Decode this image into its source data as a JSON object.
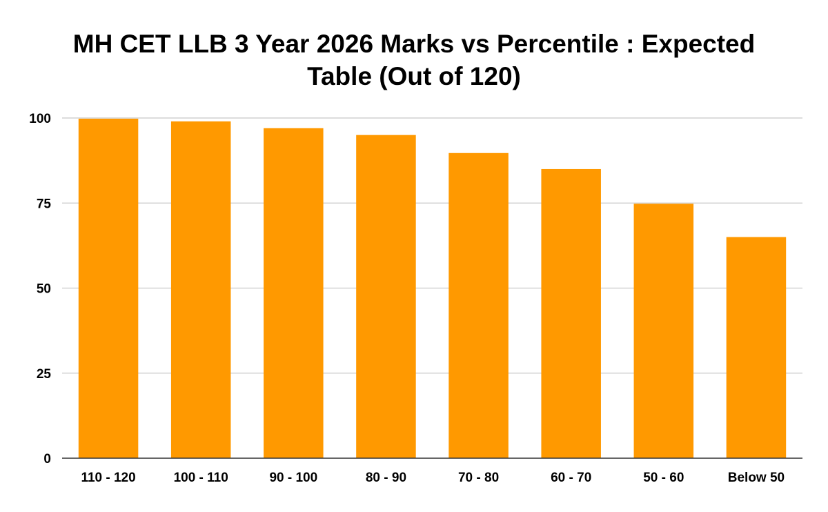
{
  "chart_data": {
    "type": "bar",
    "title_lines": [
      "MH CET LLB 3 Year 2026 Marks vs Percentile : Expected",
      "Table (Out of 120)"
    ],
    "xlabel": "",
    "ylabel": "",
    "categories": [
      "110 - 120",
      "100 - 110",
      "90 - 100",
      "80 - 90",
      "70 - 80",
      "60 - 70",
      "50 - 60",
      "Below 50"
    ],
    "series": [
      {
        "values": [
          99.8,
          99,
          97,
          95,
          89.7,
          85,
          74.8,
          65
        ],
        "color": "#ff9900"
      }
    ],
    "ylim": [
      0,
      100
    ],
    "yticks": [
      "0",
      "25",
      "50",
      "75",
      "100"
    ],
    "grid": true,
    "legend": "none"
  }
}
